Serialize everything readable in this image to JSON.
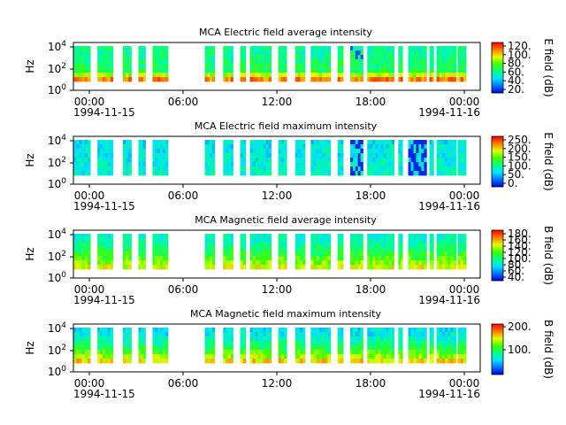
{
  "chart_data": [
    {
      "type": "heatmap",
      "title": "MCA  Electric field average intensity",
      "ylabel": "Hz",
      "y_ticks": [
        "10^4",
        "10^2",
        "10^0"
      ],
      "x_ticks": [
        "00:00",
        "06:00",
        "12:00",
        "18:00",
        "00:00"
      ],
      "x_dates": [
        "1994-11-15",
        "1994-11-16"
      ],
      "colorbar": {
        "label": "E field (dB)",
        "ticks": [
          "120.",
          "100.",
          "80.",
          "60.",
          "40.",
          "20."
        ]
      },
      "colormap": "rainbow",
      "data_intervals_utc": [
        [
          "00:00",
          "01:00"
        ],
        [
          "01:25",
          "02:20"
        ],
        [
          "02:55",
          "03:25"
        ],
        [
          "03:50",
          "04:15"
        ],
        [
          "04:40",
          "05:35"
        ],
        [
          "07:45",
          "08:20"
        ],
        [
          "08:50",
          "09:25"
        ],
        [
          "09:50",
          "10:10"
        ],
        [
          "10:25",
          "11:40"
        ],
        [
          "12:05",
          "12:35"
        ],
        [
          "13:05",
          "13:40"
        ],
        [
          "14:00",
          "15:10"
        ],
        [
          "15:35",
          "15:55"
        ],
        [
          "16:20",
          "17:05"
        ],
        [
          "17:20",
          "18:55"
        ],
        [
          "19:10",
          "19:25"
        ],
        [
          "19:45",
          "20:50"
        ],
        [
          "21:00",
          "21:15"
        ],
        [
          "21:25",
          "22:35"
        ],
        [
          "22:40",
          "23:10"
        ]
      ]
    },
    {
      "type": "heatmap",
      "title": "MCA  Electric field maximum intensity",
      "ylabel": "Hz",
      "y_ticks": [
        "10^4",
        "10^2",
        "10^0"
      ],
      "x_ticks": [
        "00:00",
        "06:00",
        "12:00",
        "18:00",
        "00:00"
      ],
      "x_dates": [
        "1994-11-15",
        "1994-11-16"
      ],
      "colorbar": {
        "label": "E field (dB)",
        "ticks": [
          "250.",
          "200.",
          "150.",
          "100.",
          "50.",
          "0."
        ]
      },
      "colormap": "rainbow"
    },
    {
      "type": "heatmap",
      "title": "MCA  Magnetic field average intensity",
      "ylabel": "Hz",
      "y_ticks": [
        "10^4",
        "10^2",
        "10^0"
      ],
      "x_ticks": [
        "00:00",
        "06:00",
        "12:00",
        "18:00",
        "00:00"
      ],
      "x_dates": [
        "1994-11-15",
        "1994-11-16"
      ],
      "colorbar": {
        "label": "B field (dB)",
        "ticks": [
          "180.",
          "160.",
          "140.",
          "120.",
          "100.",
          "80.",
          "60.",
          "40."
        ]
      },
      "colormap": "rainbow"
    },
    {
      "type": "heatmap",
      "title": "MCA  Magnetic field maximum intensity",
      "ylabel": "Hz",
      "y_ticks": [
        "10^4",
        "10^2",
        "10^0"
      ],
      "x_ticks": [
        "00:00",
        "06:00",
        "12:00",
        "18:00",
        "00:00"
      ],
      "x_dates": [
        "1994-11-15",
        "1994-11-16"
      ],
      "colorbar": {
        "label": "B field (dB)",
        "ticks": [
          "200.",
          "100."
        ]
      },
      "colormap": "rainbow"
    }
  ]
}
